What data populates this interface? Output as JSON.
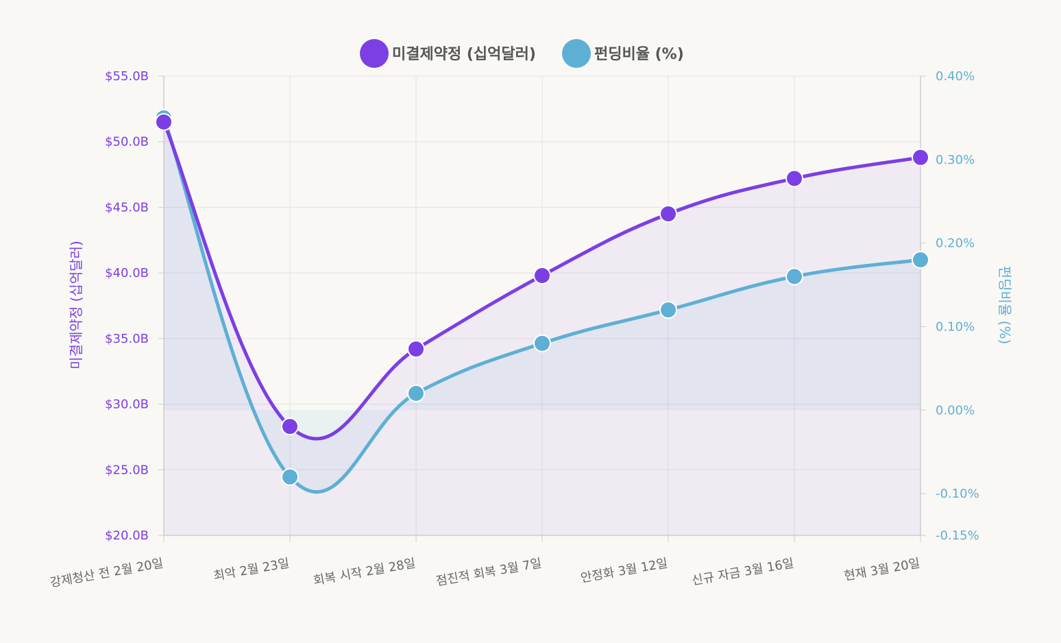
{
  "chart_data": {
    "type": "line",
    "categories": [
      "강제청산 전 2월 20일",
      "최악 2월 23일",
      "회복 시작 2월 28일",
      "점진적 회복 3월 7일",
      "안정화 3월 12일",
      "신규 자금 3월 16일",
      "현재 3월 20일"
    ],
    "series": [
      {
        "name": "미결제약정 (십억달러)",
        "axis": "left",
        "color": "#7b3fe4",
        "values": [
          51.5,
          28.3,
          34.2,
          39.8,
          44.5,
          47.2,
          48.8
        ]
      },
      {
        "name": "펀딩비율 (%)",
        "axis": "right",
        "color": "#5eafd4",
        "values": [
          0.35,
          -0.08,
          0.02,
          0.08,
          0.12,
          0.16,
          0.18
        ]
      }
    ],
    "y_left": {
      "label": "미결제약정 (십억달러)",
      "ylim": [
        20,
        55
      ],
      "ticks": [
        "$55.0B",
        "$50.0B",
        "$45.0B",
        "$40.0B",
        "$35.0B",
        "$30.0B",
        "$25.0B",
        "$20.0B"
      ],
      "tick_values": [
        55,
        50,
        45,
        40,
        35,
        30,
        25,
        20
      ]
    },
    "y_right": {
      "label": "펀딩비율 (%)",
      "ylim": [
        -0.15,
        0.4
      ],
      "ticks": [
        "0.40%",
        "0.30%",
        "0.20%",
        "0.10%",
        "0.00%",
        "-0.10%",
        "-0.15%"
      ],
      "tick_values": [
        0.4,
        0.3,
        0.2,
        0.1,
        0,
        -0.1,
        -0.15
      ]
    },
    "grid": true,
    "legend_position": "top-center",
    "colors": {
      "left_axis": "#7b3fe4",
      "right_axis": "#5eafd4"
    }
  }
}
